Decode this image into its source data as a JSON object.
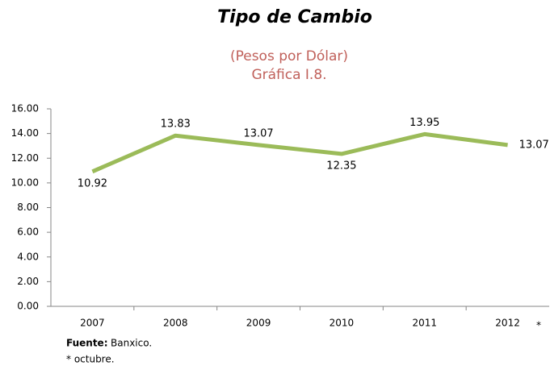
{
  "chart_data": {
    "type": "line",
    "title": "Tipo de Cambio",
    "subtitle": [
      "(Pesos por Dólar)",
      "Gráfica I.8."
    ],
    "categories": [
      "2007",
      "2008",
      "2009",
      "2010",
      "2011",
      "2012"
    ],
    "series": [
      {
        "name": "Tipo de Cambio",
        "color": "#9bbb59",
        "values": [
          10.92,
          13.83,
          13.07,
          12.35,
          13.95,
          13.07
        ]
      }
    ],
    "ylim": [
      0,
      16
    ],
    "yticks": [
      {
        "value": 0,
        "label": "0.00"
      },
      {
        "value": 2,
        "label": "2.00"
      },
      {
        "value": 4,
        "label": "4.00"
      },
      {
        "value": 6,
        "label": "6.00"
      },
      {
        "value": 8,
        "label": "8.00"
      },
      {
        "value": 10,
        "label": "10.00"
      },
      {
        "value": 12,
        "label": "12.00"
      },
      {
        "value": 14,
        "label": "14.00"
      },
      {
        "value": 16,
        "label": "16.00"
      }
    ],
    "grid": false,
    "annotation": "*",
    "source_label": "Fuente:",
    "source": "Banxico.",
    "footnote": "* octubre."
  }
}
